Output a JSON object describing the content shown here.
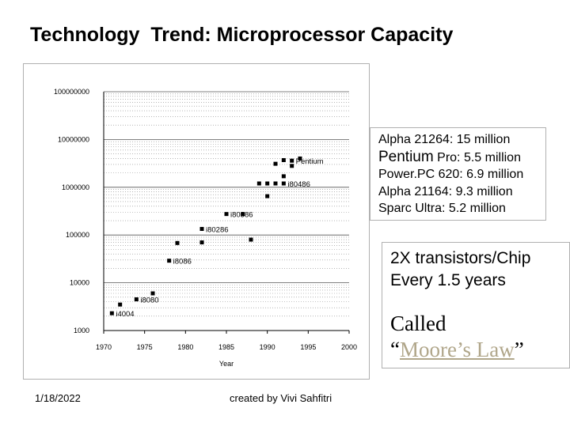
{
  "slide": {
    "title": "Technology  Trend: Microprocessor Capacity",
    "footer_date": "1/18/2022",
    "footer_credit": "created by Vivi Sahfitri"
  },
  "callout_top": {
    "lines": [
      {
        "head": "Alpha 21264:",
        "tail": " 15 million"
      },
      {
        "head": "Pentium",
        "tail": " Pro: 5.5 million"
      },
      {
        "head": "Power.PC 620:",
        "tail": " 6.9 million"
      },
      {
        "head": "Alpha 21164:",
        "tail": " 9.3 million"
      },
      {
        "head": "Sparc Ultra:",
        "tail": " 5.2 million"
      }
    ]
  },
  "callout_bottom": {
    "line1": "2X transistors/Chip",
    "line2": "Every 1.5 years",
    "called": "Called",
    "open_quote": "“",
    "moore": "Moore’s Law",
    "close_quote": "”"
  },
  "colors": {
    "points": "#000000",
    "grid": "#8a8a8a",
    "moore_link": "#b0a68a"
  },
  "chart_data": {
    "type": "scatter",
    "title": "",
    "xlabel": "Year",
    "ylabel": "",
    "xlim": [
      1970,
      2000
    ],
    "ylim": [
      1000,
      100000000
    ],
    "y_scale": "log",
    "grid": true,
    "x_ticks": [
      "1970",
      "1975",
      "1980",
      "1985",
      "1990",
      "1995",
      "2000"
    ],
    "y_ticks": [
      "100000000",
      "10000000",
      "1000000",
      "100000",
      "10000",
      "1000"
    ],
    "y_tick_values": [
      100000000,
      10000000,
      1000000,
      100000,
      10000,
      1000
    ],
    "points": [
      {
        "x": 1971,
        "y": 2300,
        "label": "i4004"
      },
      {
        "x": 1972,
        "y": 3500,
        "label": ""
      },
      {
        "x": 1974,
        "y": 4500,
        "label": "i8080"
      },
      {
        "x": 1976,
        "y": 6000,
        "label": ""
      },
      {
        "x": 1978,
        "y": 29000,
        "label": "i8086"
      },
      {
        "x": 1979,
        "y": 68000,
        "label": ""
      },
      {
        "x": 1982,
        "y": 134000,
        "label": "i80286"
      },
      {
        "x": 1982,
        "y": 70000,
        "label": ""
      },
      {
        "x": 1985,
        "y": 275000,
        "label": "i80386"
      },
      {
        "x": 1987,
        "y": 275000,
        "label": ""
      },
      {
        "x": 1988,
        "y": 80000,
        "label": ""
      },
      {
        "x": 1989,
        "y": 1200000,
        "label": ""
      },
      {
        "x": 1990,
        "y": 1200000,
        "label": ""
      },
      {
        "x": 1990,
        "y": 650000,
        "label": ""
      },
      {
        "x": 1991,
        "y": 1200000,
        "label": ""
      },
      {
        "x": 1992,
        "y": 1200000,
        "label": "i80486"
      },
      {
        "x": 1992,
        "y": 1700000,
        "label": ""
      },
      {
        "x": 1991,
        "y": 3100000,
        "label": ""
      },
      {
        "x": 1992,
        "y": 3700000,
        "label": ""
      },
      {
        "x": 1993,
        "y": 3600000,
        "label": "Pentium"
      },
      {
        "x": 1993,
        "y": 2800000,
        "label": ""
      },
      {
        "x": 1994,
        "y": 4000000,
        "label": ""
      }
    ]
  }
}
